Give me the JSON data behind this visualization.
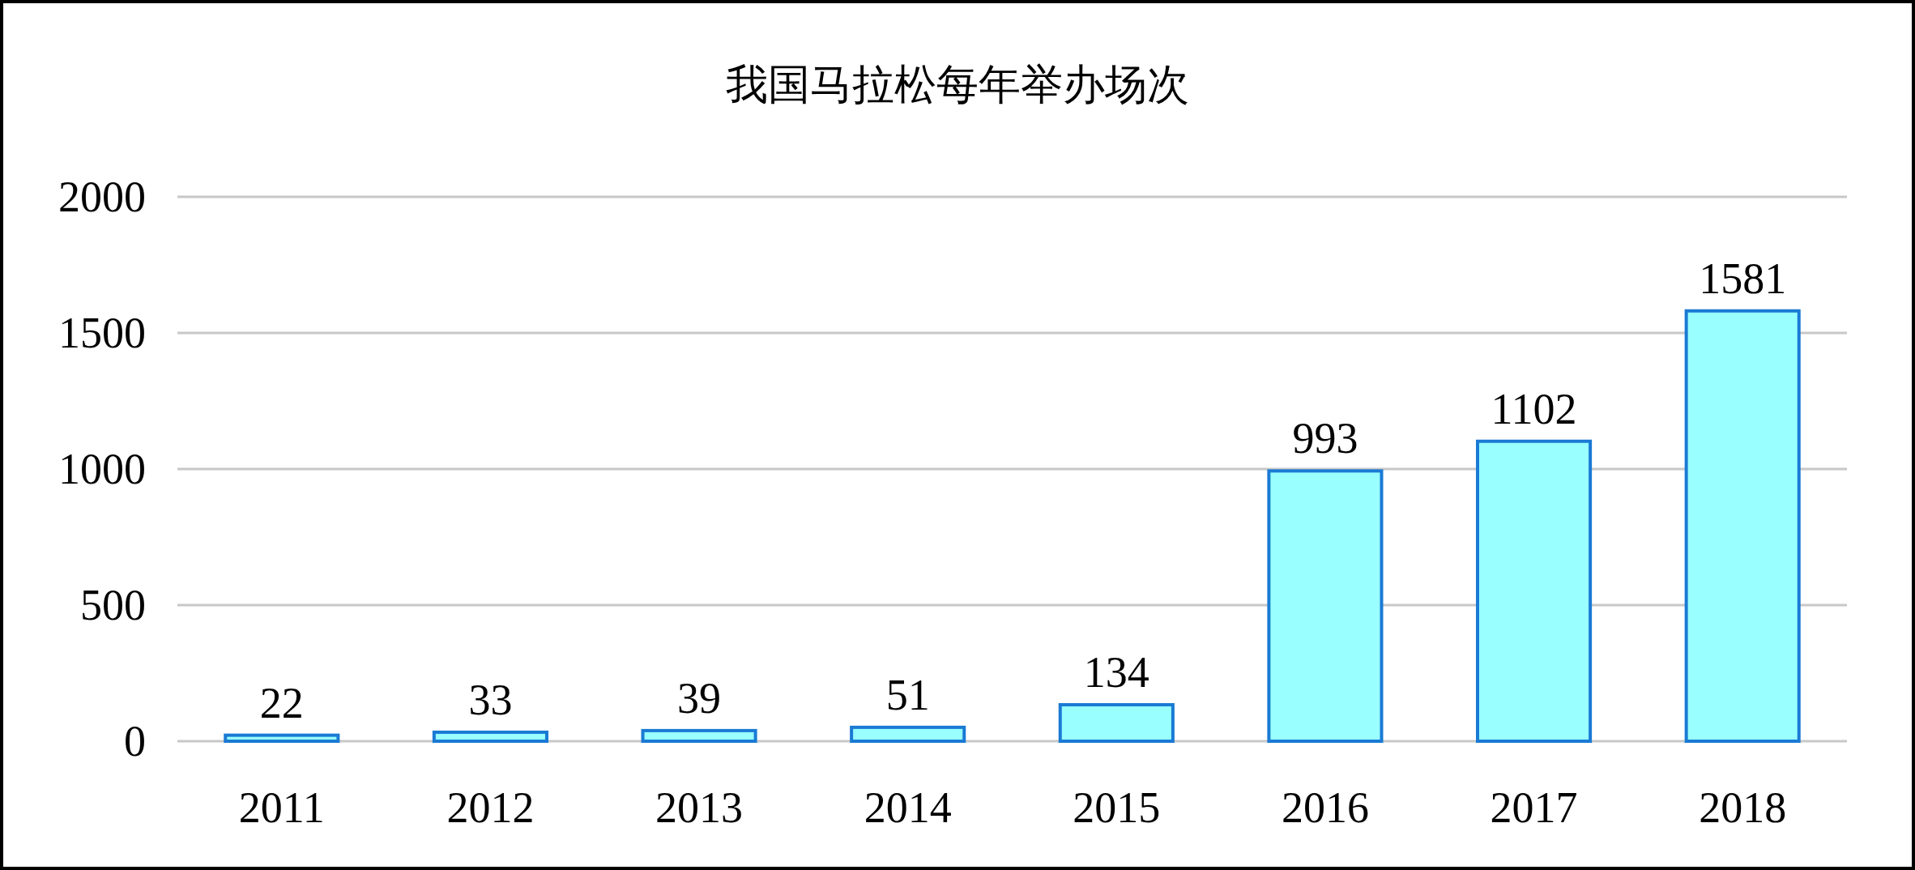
{
  "chart_data": {
    "type": "bar",
    "title": "我国马拉松每年举办场次",
    "categories": [
      "2011",
      "2012",
      "2013",
      "2014",
      "2015",
      "2016",
      "2017",
      "2018"
    ],
    "values": [
      22,
      33,
      39,
      51,
      134,
      993,
      1102,
      1581
    ],
    "color": "#99ffff",
    "ylim": [
      0,
      2000
    ],
    "yticks": [
      0,
      500,
      1000,
      1500,
      2000
    ],
    "grid": "y",
    "data_labels": true
  }
}
